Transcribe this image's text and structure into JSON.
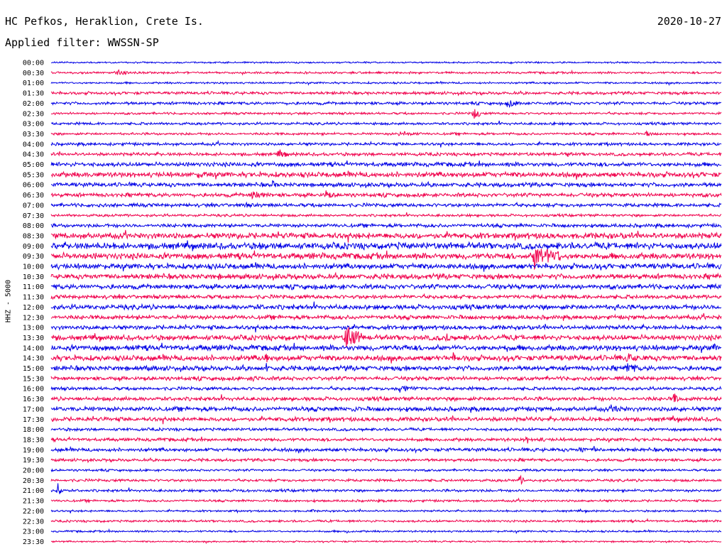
{
  "header": {
    "station": "HC Pefkos, Heraklion, Crete Is.",
    "date": "2020-10-27",
    "filter": "Applied filter: WWSSN-SP"
  },
  "colors": {
    "even_trace": "#0000e6",
    "odd_trace": "#f0004c"
  },
  "chart_data": {
    "type": "line",
    "title": "HC Pefkos, Heraklion, Crete Is.",
    "ylabel": "HHZ - 5000",
    "xlabel": "",
    "date": "2020-10-27",
    "filter": "WWSSN-SP",
    "grid": false,
    "legend": "none",
    "x_minutes_per_line": 30,
    "rows": [
      {
        "label": "00:00",
        "events": []
      },
      {
        "label": "00:30",
        "events": [
          [
            0.1,
            6,
            16
          ]
        ]
      },
      {
        "label": "01:00",
        "events": [
          [
            0.74,
            3,
            12
          ]
        ]
      },
      {
        "label": "01:30",
        "events": []
      },
      {
        "label": "02:00",
        "events": [
          [
            0.68,
            7,
            24
          ]
        ]
      },
      {
        "label": "02:30",
        "events": [
          [
            0.63,
            12,
            10
          ]
        ]
      },
      {
        "label": "03:00",
        "events": [
          [
            0.75,
            4,
            4
          ]
        ]
      },
      {
        "label": "03:30",
        "events": [
          [
            0.52,
            5,
            30
          ],
          [
            0.89,
            6,
            8
          ]
        ]
      },
      {
        "label": "04:00",
        "events": []
      },
      {
        "label": "04:30",
        "events": [
          [
            0.34,
            9,
            12
          ],
          [
            0.77,
            5,
            8
          ]
        ]
      },
      {
        "label": "05:00",
        "events": [
          [
            0.56,
            3,
            14
          ]
        ]
      },
      {
        "label": "05:30",
        "events": [
          [
            0.22,
            6,
            30
          ]
        ]
      },
      {
        "label": "06:00",
        "events": [
          [
            0.33,
            7,
            10
          ]
        ]
      },
      {
        "label": "06:30",
        "events": [
          [
            0.3,
            8,
            28
          ],
          [
            0.41,
            8,
            14
          ]
        ]
      },
      {
        "label": "07:00",
        "events": [
          [
            0.29,
            4,
            28
          ]
        ]
      },
      {
        "label": "07:30",
        "events": []
      },
      {
        "label": "08:00",
        "events": [
          [
            0.79,
            4,
            10
          ]
        ]
      },
      {
        "label": "08:30",
        "events": [
          [
            0.16,
            5,
            14
          ]
        ]
      },
      {
        "label": "09:00",
        "events": [
          [
            0.31,
            7,
            14
          ],
          [
            0.52,
            9,
            6
          ]
        ]
      },
      {
        "label": "09:30",
        "events": [
          [
            0.72,
            20,
            40
          ],
          [
            0.42,
            4,
            22
          ]
        ]
      },
      {
        "label": "10:00",
        "events": [
          [
            0.81,
            7,
            12
          ]
        ]
      },
      {
        "label": "10:30",
        "events": [
          [
            0.25,
            5,
            14
          ],
          [
            0.49,
            6,
            6
          ]
        ]
      },
      {
        "label": "11:00",
        "events": []
      },
      {
        "label": "11:30",
        "events": [
          [
            0.8,
            4,
            8
          ]
        ]
      },
      {
        "label": "12:00",
        "events": [
          [
            0.31,
            6,
            10
          ],
          [
            0.84,
            6,
            12
          ]
        ]
      },
      {
        "label": "12:30",
        "events": [
          [
            0.42,
            4,
            10
          ]
        ]
      },
      {
        "label": "13:00",
        "events": [
          [
            0.44,
            5,
            10
          ]
        ]
      },
      {
        "label": "13:30",
        "events": [
          [
            0.44,
            24,
            22
          ],
          [
            0.59,
            8,
            10
          ],
          [
            0.001,
            6,
            12
          ]
        ]
      },
      {
        "label": "14:00",
        "events": [
          [
            0.28,
            6,
            3
          ],
          [
            0.53,
            8,
            4
          ],
          [
            0.68,
            8,
            4
          ],
          [
            0.99,
            10,
            3
          ]
        ]
      },
      {
        "label": "14:30",
        "events": [
          [
            0.32,
            14,
            4
          ],
          [
            0.86,
            8,
            30
          ],
          [
            0.6,
            8,
            8
          ]
        ]
      },
      {
        "label": "15:00",
        "events": [
          [
            0.14,
            6,
            8
          ],
          [
            0.86,
            12,
            16
          ],
          [
            0.32,
            16,
            3
          ]
        ]
      },
      {
        "label": "15:30",
        "events": [
          [
            0.3,
            5,
            30
          ]
        ]
      },
      {
        "label": "16:00",
        "events": [
          [
            0.52,
            7,
            30
          ]
        ]
      },
      {
        "label": "16:30",
        "events": [
          [
            0.93,
            12,
            6
          ]
        ]
      },
      {
        "label": "17:00",
        "events": [
          [
            0.45,
            8,
            6
          ],
          [
            0.84,
            7,
            20
          ]
        ]
      },
      {
        "label": "17:30",
        "events": []
      },
      {
        "label": "18:00",
        "events": [
          [
            0.84,
            3,
            8
          ]
        ]
      },
      {
        "label": "18:30",
        "events": [
          [
            0.71,
            7,
            8
          ],
          [
            0.73,
            6,
            8
          ],
          [
            0.14,
            3,
            30
          ]
        ]
      },
      {
        "label": "19:00",
        "events": [
          [
            0.79,
            7,
            8
          ],
          [
            0.81,
            6,
            6
          ],
          [
            0.92,
            4,
            8
          ]
        ]
      },
      {
        "label": "19:30",
        "events": []
      },
      {
        "label": "20:00",
        "events": []
      },
      {
        "label": "20:30",
        "events": [
          [
            0.7,
            9,
            6
          ]
        ]
      },
      {
        "label": "21:00",
        "events": [
          [
            0.01,
            12,
            8
          ],
          [
            0.28,
            3,
            30
          ]
        ]
      },
      {
        "label": "21:30",
        "events": []
      },
      {
        "label": "22:00",
        "events": [
          [
            0.39,
            3,
            6
          ]
        ]
      },
      {
        "label": "22:30",
        "events": []
      },
      {
        "label": "23:00",
        "events": [
          [
            0.44,
            3,
            16
          ],
          [
            0.8,
            3,
            10
          ]
        ]
      },
      {
        "label": "23:30",
        "events": []
      }
    ],
    "noise_profile": [
      1,
      1.3,
      1.2,
      1.8,
      1.8,
      1.4,
      1.6,
      1.5,
      1.8,
      2.0,
      2.6,
      3.2,
      2.6,
      2.4,
      2.2,
      1.6,
      2.2,
      3.6,
      4.0,
      3.8,
      3.4,
      3.2,
      3.0,
      2.4,
      3.0,
      2.6,
      2.6,
      3.2,
      3.4,
      3.4,
      3.0,
      2.4,
      2.0,
      2.4,
      2.8,
      2.6,
      1.8,
      2.0,
      2.2,
      1.8,
      1.4,
      1.6,
      1.6,
      1.4,
      1.2,
      1.4,
      1.2,
      1.0
    ]
  }
}
